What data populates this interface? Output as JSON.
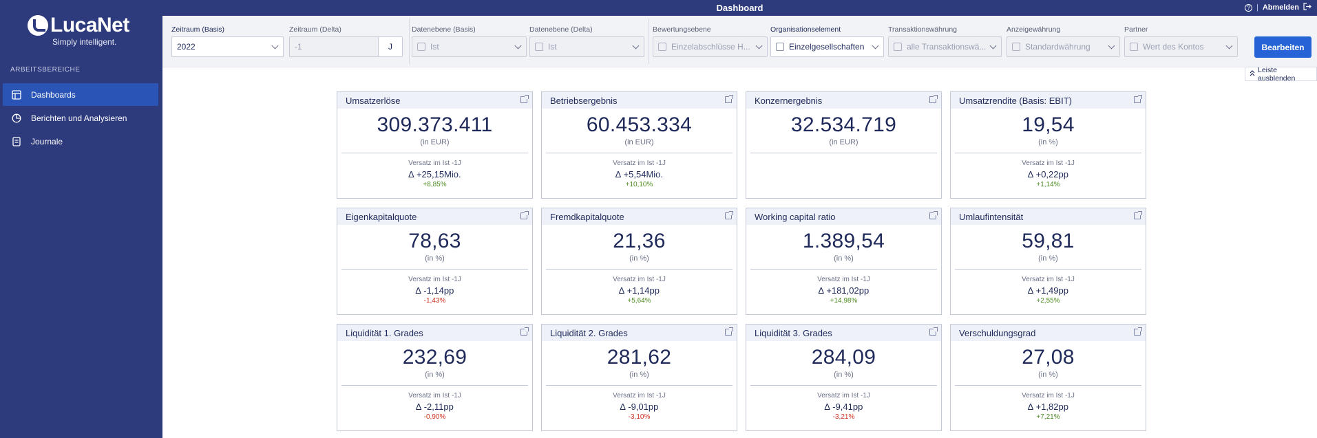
{
  "app": {
    "logo_name": "LucaNet",
    "logo_tagline": "Simply intelligent.",
    "page_title": "Dashboard",
    "logout_label": "Abmelden",
    "separator": "|"
  },
  "sidebar": {
    "section_label": "ARBEITSBEREICHE",
    "items": [
      {
        "label": "Dashboards",
        "icon": "dashboard-icon",
        "active": true
      },
      {
        "label": "Berichten und Analysieren",
        "icon": "pie-chart-icon",
        "active": false
      },
      {
        "label": "Journale",
        "icon": "journal-icon",
        "active": false
      }
    ]
  },
  "filters": {
    "period_basis": {
      "label": "Zeitraum (Basis)",
      "value": "2022"
    },
    "period_delta": {
      "label": "Zeitraum (Delta)",
      "value": "-1",
      "unit": "J"
    },
    "data_level_basis": {
      "label": "Datenebene (Basis)",
      "value": "Ist"
    },
    "data_level_delta": {
      "label": "Datenebene (Delta)",
      "value": "Ist"
    },
    "valuation_level": {
      "label": "Bewertungsebene",
      "value": "Einzelabschlüsse H..."
    },
    "org_element": {
      "label": "Organisationselement",
      "value": "Einzelgesellschaften"
    },
    "transaction_currency": {
      "label": "Transaktionswährung",
      "value": "alle Transaktionswä..."
    },
    "display_currency": {
      "label": "Anzeigewährung",
      "value": "Standardwährung"
    },
    "partner": {
      "label": "Partner",
      "value": "Wert des Kontos"
    },
    "edit_button": "Bearbeiten",
    "hide_bar_button": "Leiste ausblenden"
  },
  "cards": [
    {
      "title": "Umsatzerlöse",
      "value": "309.373.411",
      "unit": "(in EUR)",
      "sub": "Versatz im Ist -1J",
      "delta": "∆ +25,15Mio.",
      "pct": "+8,85%",
      "pct_sign": "pos"
    },
    {
      "title": "Betriebsergebnis",
      "value": "60.453.334",
      "unit": "(in EUR)",
      "sub": "Versatz im Ist -1J",
      "delta": "∆ +5,54Mio.",
      "pct": "+10,10%",
      "pct_sign": "pos"
    },
    {
      "title": "Konzernergebnis",
      "value": "32.534.719",
      "unit": "(in EUR)",
      "sub": "",
      "delta": "",
      "pct": "",
      "pct_sign": "pos"
    },
    {
      "title": "Umsatzrendite (Basis: EBIT)",
      "value": "19,54",
      "unit": "(in %)",
      "sub": "Versatz im Ist -1J",
      "delta": "∆ +0,22pp",
      "pct": "+1,14%",
      "pct_sign": "pos"
    },
    {
      "title": "Eigenkapitalquote",
      "value": "78,63",
      "unit": "(in %)",
      "sub": "Versatz im Ist -1J",
      "delta": "∆ -1,14pp",
      "pct": "-1,43%",
      "pct_sign": "neg"
    },
    {
      "title": "Fremdkapitalquote",
      "value": "21,36",
      "unit": "(in %)",
      "sub": "Versatz im Ist -1J",
      "delta": "∆ +1,14pp",
      "pct": "+5,64%",
      "pct_sign": "pos"
    },
    {
      "title": "Working capital ratio",
      "value": "1.389,54",
      "unit": "(in %)",
      "sub": "Versatz im Ist -1J",
      "delta": "∆ +181,02pp",
      "pct": "+14,98%",
      "pct_sign": "pos"
    },
    {
      "title": "Umlaufintensität",
      "value": "59,81",
      "unit": "(in %)",
      "sub": "Versatz im Ist -1J",
      "delta": "∆ +1,49pp",
      "pct": "+2,55%",
      "pct_sign": "pos"
    },
    {
      "title": "Liquidität 1. Grades",
      "value": "232,69",
      "unit": "(in %)",
      "sub": "Versatz im Ist -1J",
      "delta": "∆ -2,11pp",
      "pct": "-0,90%",
      "pct_sign": "neg"
    },
    {
      "title": "Liquidität 2. Grades",
      "value": "281,62",
      "unit": "(in %)",
      "sub": "Versatz im Ist -1J",
      "delta": "∆ -9,01pp",
      "pct": "-3,10%",
      "pct_sign": "neg"
    },
    {
      "title": "Liquidität 3. Grades",
      "value": "284,09",
      "unit": "(in %)",
      "sub": "Versatz im Ist -1J",
      "delta": "∆ -9,41pp",
      "pct": "-3,21%",
      "pct_sign": "neg"
    },
    {
      "title": "Verschuldungsgrad",
      "value": "27,08",
      "unit": "(in %)",
      "sub": "Versatz im Ist -1J",
      "delta": "∆ +1,82pp",
      "pct": "+7,21%",
      "pct_sign": "pos"
    }
  ],
  "colors": {
    "sidebar_bg": "#2d3a7c",
    "active_nav": "#2a55b7",
    "accent_button": "#2563d6",
    "positive": "#4a8a1e",
    "negative": "#d0321f"
  }
}
